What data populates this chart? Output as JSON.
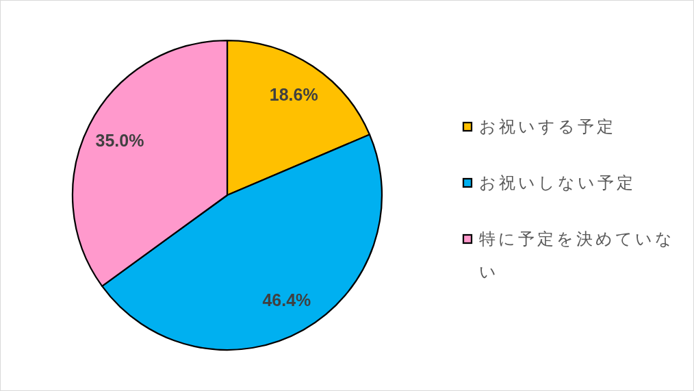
{
  "chart_data": {
    "type": "pie",
    "categories": [
      "お祝いする予定",
      "お祝いしない予定",
      "特に予定を決めていない"
    ],
    "values": [
      18.6,
      46.4,
      35.0
    ],
    "colors": [
      "#ffc000",
      "#00b0f0",
      "#ff99cc"
    ],
    "value_labels": [
      "18.6%",
      "46.4%",
      "35.0%"
    ],
    "legend": "right"
  }
}
